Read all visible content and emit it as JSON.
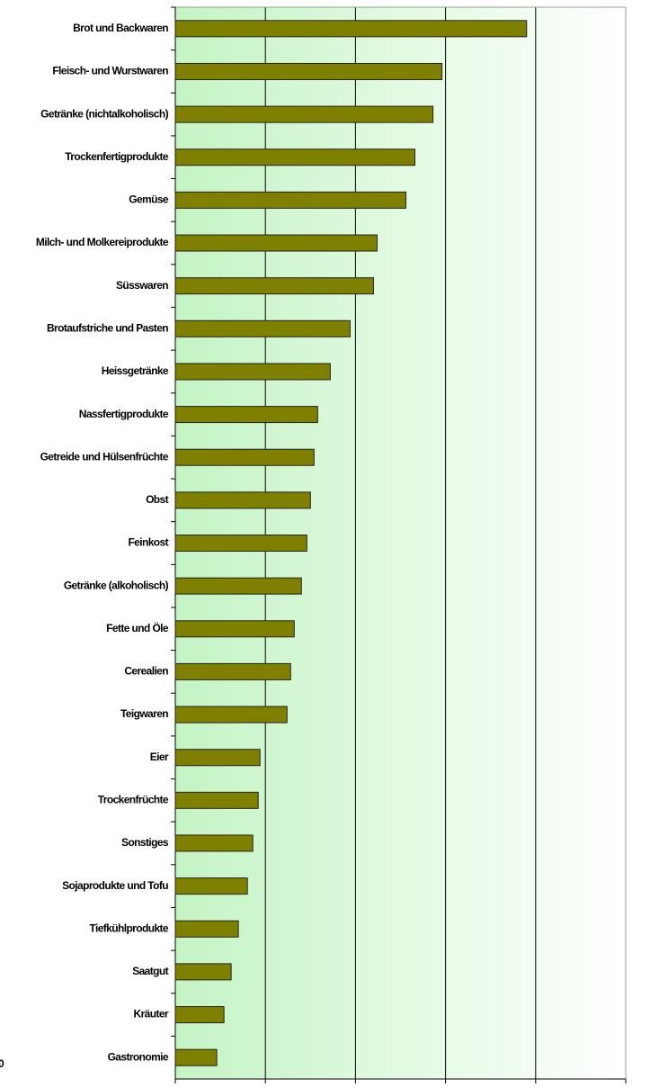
{
  "chart_data": {
    "type": "bar",
    "orientation": "horizontal",
    "categories": [
      "Brot und Backwaren",
      "Fleisch- und Wurstwaren",
      "Getränke (nichtalkoholisch)",
      "Trockenfertigprodukte",
      "Gemüse",
      "Milch- und Molkereiprodukte",
      "Süsswaren",
      "Brotaufstriche und Pasten",
      "Heissgetränke",
      "Nassfertigprodukte",
      "Getreide und Hülsenfrüchte",
      "Obst",
      "Feinkost",
      "Getränke (alkoholisch)",
      "Fette und Öle",
      "Cerealien",
      "Teigwaren",
      "Eier",
      "Trockenfrüchte",
      "Sonstiges",
      "Sojaprodukte und Tofu",
      "Tiefkühlprodukte",
      "Saatgut",
      "Kräuter",
      "Gastronomie"
    ],
    "values": [
      195,
      148,
      143,
      133,
      128,
      112,
      110,
      97,
      86,
      79,
      77,
      75,
      73,
      70,
      66,
      64,
      62,
      47,
      46,
      43,
      40,
      35,
      31,
      27,
      23
    ],
    "color": "#808000",
    "xlim": [
      0,
      250
    ],
    "xticks": [
      0,
      50,
      100,
      150,
      200,
      250
    ],
    "grid": true,
    "annotation": "0"
  }
}
